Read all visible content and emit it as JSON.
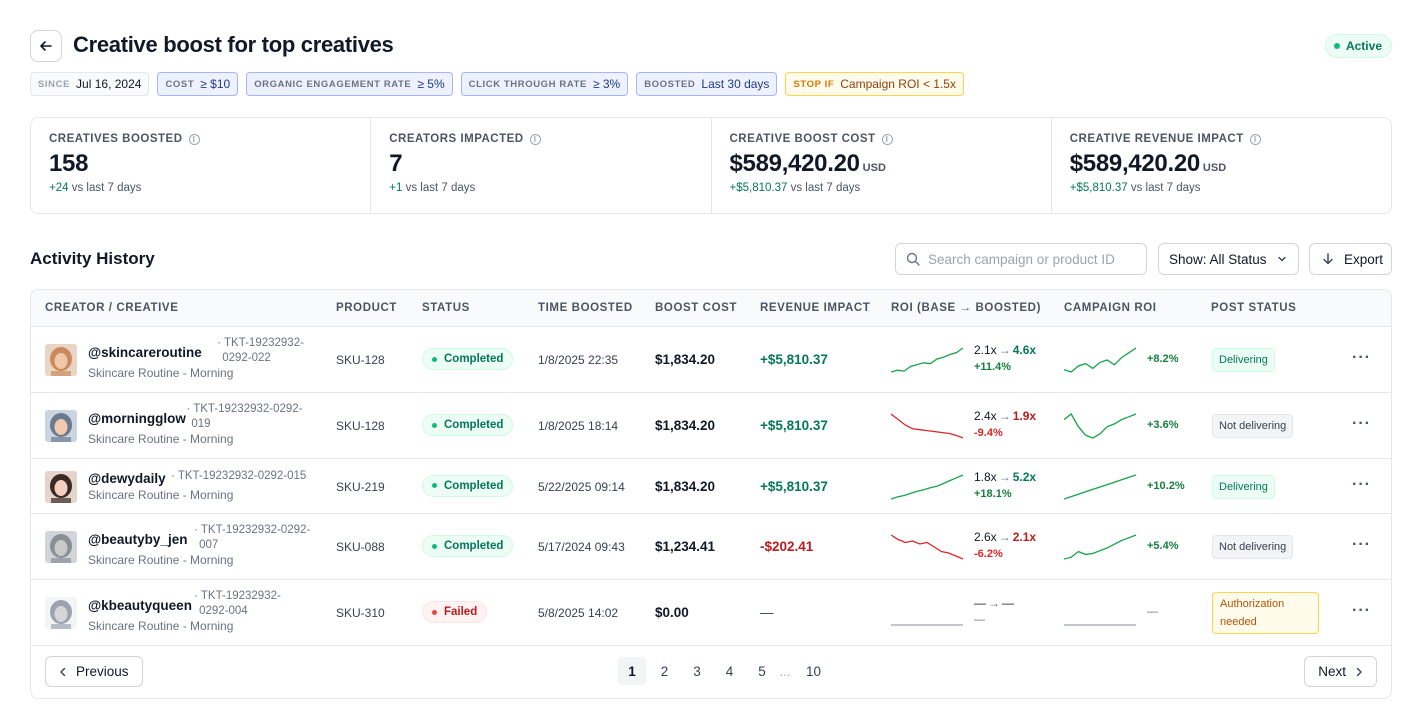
{
  "header": {
    "title": "Creative boost for top creatives",
    "status": "Active"
  },
  "chips": [
    {
      "key": "SINCE",
      "value": "Jul 16, 2024",
      "style": "gray"
    },
    {
      "key": "COST",
      "value": "≥ $10",
      "style": "blue"
    },
    {
      "key": "ORGANIC ENGAGEMENT RATE",
      "value": "≥ 5%",
      "style": "blue"
    },
    {
      "key": "CLICK THROUGH RATE",
      "value": "≥ 3%",
      "style": "blue"
    },
    {
      "key": "BOOSTED",
      "value": "Last 30 days",
      "style": "blue"
    },
    {
      "key": "STOP IF",
      "value": "Campaign ROI < 1.5x",
      "style": "yellow"
    }
  ],
  "stats": [
    {
      "label": "CREATIVES BOOSTED",
      "value": "158",
      "unit": "",
      "delta": "+24",
      "delta_suffix": "vs last 7 days"
    },
    {
      "label": "CREATORS IMPACTED",
      "value": "7",
      "unit": "",
      "delta": "+1",
      "delta_suffix": "vs last 7 days"
    },
    {
      "label": "CREATIVE BOOST COST",
      "value": "$589,420.20",
      "unit": "USD",
      "delta": "+$5,810.37",
      "delta_suffix": "vs last 7 days"
    },
    {
      "label": "CREATIVE REVENUE IMPACT",
      "value": "$589,420.20",
      "unit": "USD",
      "delta": "+$5,810.37",
      "delta_suffix": "vs last 7 days"
    }
  ],
  "activity": {
    "title": "Activity History",
    "search_placeholder": "Search campaign or product ID",
    "filter_label": "Show: All Status",
    "export_label": "Export"
  },
  "table": {
    "columns": [
      "CREATOR / CREATIVE",
      "PRODUCT",
      "STATUS",
      "TIME BOOSTED",
      "BOOST COST",
      "REVENUE IMPACT",
      "ROI (BASE → BOOSTED)",
      "CAMPAIGN ROI",
      "POST STATUS"
    ],
    "rows": [
      {
        "handle": "@skincareroutine",
        "ticket_a": "· TKT-19232932-",
        "ticket_b": "0292-022",
        "subtitle": "Skincare Routine - Morning",
        "sku": "SKU-128",
        "status": "Completed",
        "status_kind": "ok",
        "time": "1/8/2025 22:35",
        "cost": "$1,834.20",
        "revenue": "+$5,810.37",
        "revenue_kind": "pos",
        "roi_base": "2.1x",
        "roi_boosted": "4.6x",
        "roi_delta": "+11.4%",
        "roi_dir": "up",
        "roi_spark": [
          2.0,
          2.2,
          2.1,
          2.6,
          2.8,
          3.0,
          2.9,
          3.4,
          3.6,
          3.9,
          4.1,
          4.6
        ],
        "camp_pct": "+8.2%",
        "camp_spark": [
          2.3,
          2.1,
          2.6,
          2.8,
          2.4,
          2.9,
          3.1,
          2.7,
          3.3,
          3.7,
          4.1
        ],
        "post_status": "Delivering",
        "post_kind": "deliv",
        "avatar_color": "#c98a5e"
      },
      {
        "handle": "@morningglow",
        "ticket_a": "· TKT-19232932-0292-",
        "ticket_b": "019",
        "subtitle": "Skincare Routine - Morning",
        "sku": "SKU-128",
        "status": "Completed",
        "status_kind": "ok",
        "time": "1/8/2025 18:14",
        "cost": "$1,834.20",
        "revenue": "+$5,810.37",
        "revenue_kind": "pos",
        "roi_base": "2.4x",
        "roi_boosted": "1.9x",
        "roi_delta": "-9.4%",
        "roi_dir": "down",
        "roi_spark": [
          3.2,
          2.9,
          2.6,
          2.4,
          2.35,
          2.3,
          2.25,
          2.2,
          2.15,
          2.05,
          1.9
        ],
        "camp_pct": "+3.6%",
        "camp_spark": [
          2.9,
          3.3,
          2.4,
          1.8,
          1.6,
          1.9,
          2.4,
          2.6,
          2.9,
          3.1,
          3.3
        ],
        "post_status": "Not delivering",
        "post_kind": "not",
        "avatar_color": "#6b7a8f"
      },
      {
        "handle": "@dewydaily",
        "ticket_a": "· TKT-19232932-0292-015",
        "ticket_b": "",
        "subtitle": "Skincare Routine - Morning",
        "sku": "SKU-219",
        "status": "Completed",
        "status_kind": "ok",
        "time": "5/22/2025 09:14",
        "cost": "$1,834.20",
        "revenue": "+$5,810.37",
        "revenue_kind": "pos",
        "roi_base": "1.8x",
        "roi_boosted": "5.2x",
        "roi_delta": "+18.1%",
        "roi_dir": "up",
        "roi_spark": [
          1.8,
          2.1,
          2.3,
          2.6,
          2.9,
          3.1,
          3.4,
          3.6,
          4.0,
          4.4,
          4.8,
          5.2
        ],
        "camp_pct": "+10.2%",
        "camp_spark": [
          1.0,
          1.3,
          1.6,
          1.9,
          2.2,
          2.5,
          2.8,
          3.1,
          3.4,
          3.7,
          4.0
        ],
        "post_status": "Delivering",
        "post_kind": "deliv",
        "avatar_color": "#3b2a24"
      },
      {
        "handle": "@beautyby_jen",
        "ticket_a": "· TKT-19232932-0292-",
        "ticket_b": "007",
        "subtitle": "Skincare Routine - Morning",
        "sku": "SKU-088",
        "status": "Completed",
        "status_kind": "ok",
        "time": "5/17/2024 09:43",
        "cost": "$1,234.41",
        "revenue": "-$202.41",
        "revenue_kind": "neg",
        "roi_base": "2.6x",
        "roi_boosted": "2.1x",
        "roi_delta": "-6.2%",
        "roi_dir": "down",
        "roi_spark": [
          3.6,
          3.3,
          3.1,
          3.2,
          3.0,
          3.1,
          2.8,
          2.5,
          2.4,
          2.2,
          2.0
        ],
        "camp_pct": "+5.4%",
        "camp_spark": [
          1.4,
          1.6,
          2.2,
          1.9,
          2.0,
          2.3,
          2.6,
          3.0,
          3.4,
          3.7,
          4.0
        ],
        "post_status": "Not delivering",
        "post_kind": "not",
        "avatar_color": "#8a8f95"
      },
      {
        "handle": "@kbeautyqueen",
        "ticket_a": "· TKT-19232932-",
        "ticket_b": "0292-004",
        "subtitle": "Skincare Routine - Morning",
        "sku": "SKU-310",
        "status": "Failed",
        "status_kind": "fail",
        "time": "5/8/2025 14:02",
        "cost": "$0.00",
        "revenue": "—",
        "revenue_kind": "neu",
        "roi_base": "—",
        "roi_boosted": "—",
        "roi_delta": "—",
        "roi_dir": "none",
        "roi_spark": [],
        "camp_pct": "—",
        "camp_spark": [],
        "post_status": "Authorization needed",
        "post_kind": "auth",
        "avatar_color": "#9ca3af"
      }
    ]
  },
  "pagination": {
    "previous": "Previous",
    "next": "Next",
    "pages": [
      "1",
      "2",
      "3",
      "4",
      "5"
    ],
    "ellipsis": "...",
    "last": "10",
    "current": "1"
  }
}
